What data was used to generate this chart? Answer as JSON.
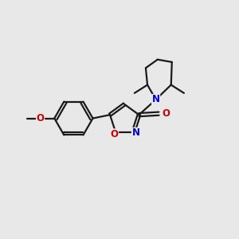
{
  "background_color": "#e8e8e8",
  "bond_color": "#1a1a1a",
  "nitrogen_color": "#0000cc",
  "oxygen_color": "#cc0000",
  "line_width": 1.6,
  "figsize": [
    3.0,
    3.0
  ],
  "dpi": 100,
  "xlim": [
    0,
    10
  ],
  "ylim": [
    0,
    10
  ]
}
